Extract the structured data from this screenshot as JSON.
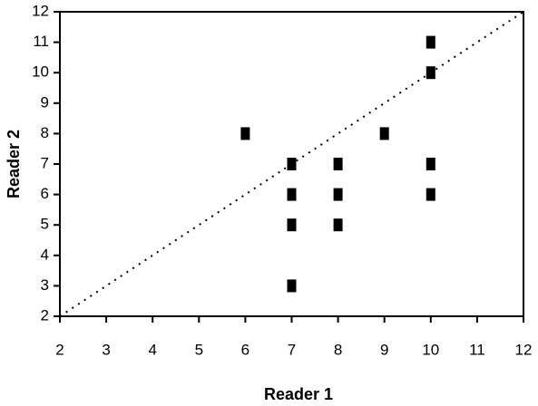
{
  "chart_data": {
    "type": "scatter",
    "xlabel": "Reader 1",
    "ylabel": "Reader 2",
    "x": [
      6,
      7,
      7,
      7,
      7,
      8,
      8,
      8,
      9,
      10,
      10,
      10,
      10
    ],
    "values": [
      8,
      7,
      6,
      5,
      3,
      7,
      6,
      5,
      8,
      11,
      10,
      7,
      6
    ],
    "color": "#000000",
    "xlim": [
      2,
      12
    ],
    "xticks": [
      2,
      3,
      4,
      5,
      6,
      7,
      8,
      9,
      10,
      11,
      12
    ],
    "ylim": [
      2,
      12
    ],
    "yticks": [
      2,
      3,
      4,
      5,
      6,
      7,
      8,
      9,
      10,
      11,
      12
    ],
    "grid": false
  }
}
